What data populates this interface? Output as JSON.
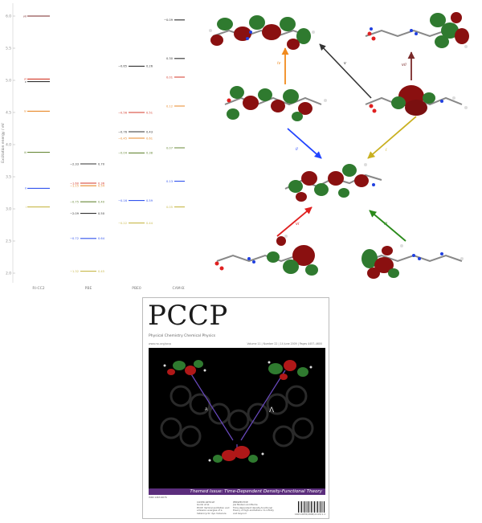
{
  "energy_diagram": {
    "y_axis_label": "Excitation energy / eV",
    "y_ticks": [
      "6.0",
      "5.5",
      "5.0",
      "4.5",
      "4.0",
      "3.5",
      "3.0",
      "2.5",
      "2.0"
    ],
    "y_tick_values": [
      6.0,
      5.5,
      5.0,
      4.5,
      4.0,
      3.5,
      3.0,
      2.5,
      2.0
    ],
    "y_range": [
      1.9,
      6.1
    ],
    "methods": [
      "RI-CC2",
      "PBE",
      "PBE0",
      "CAM-B3LYP"
    ],
    "colors": {
      "i": "#c9b94c",
      "ii": "#3355ee",
      "iii": "#6a8a3a",
      "iv": "#e88a2a",
      "v": "#333333",
      "vi": "#d43a2a",
      "vii": "#7a2a2a"
    },
    "ricc2_levels": [
      {
        "state": "vii",
        "label": "vii",
        "energy": 6.0
      },
      {
        "state": "vi",
        "label": "vi",
        "energy": 5.02
      },
      {
        "state": "v",
        "label": "v",
        "energy": 4.98
      },
      {
        "state": "iv",
        "label": "iv",
        "energy": 4.52
      },
      {
        "state": "iii",
        "label": "iii",
        "energy": 3.88
      },
      {
        "state": "ii",
        "label": "ii",
        "energy": 3.32
      },
      {
        "state": "i",
        "label": "i",
        "energy": 3.03
      }
    ],
    "pbe_levels": [
      {
        "state": "v",
        "energy": 3.7,
        "left": "−2.33",
        "right": "0.70"
      },
      {
        "state": "vi",
        "energy": 3.4,
        "left": "−1.60",
        "right": "0.36"
      },
      {
        "state": "iv",
        "energy": 3.36,
        "left": "−1.15",
        "right": "0.54"
      },
      {
        "state": "iii",
        "energy": 3.11,
        "left": "−0.75",
        "right": "0.40"
      },
      {
        "state": "v",
        "energy": 2.93,
        "left": "−2.09",
        "right": "0.50"
      },
      {
        "state": "ii",
        "energy": 2.54,
        "left": "−0.72",
        "right": "0.64"
      },
      {
        "state": "i",
        "energy": 2.03,
        "left": "−1.32",
        "right": "0.45"
      }
    ],
    "pbe0_levels": [
      {
        "state": "v",
        "energy": 5.22,
        "left": "−0.65",
        "right": "0.26"
      },
      {
        "state": "vi",
        "energy": 4.5,
        "left": "−0.56",
        "right": "0.51"
      },
      {
        "state": "v",
        "energy": 4.2,
        "left": "−0.76",
        "right": "0.43"
      },
      {
        "state": "iv",
        "energy": 4.1,
        "left": "−0.45",
        "right": "0.61"
      },
      {
        "state": "iii",
        "energy": 3.87,
        "left": "−0.04",
        "right": "0.38"
      },
      {
        "state": "ii",
        "energy": 3.13,
        "left": "−0.16",
        "right": "0.59"
      },
      {
        "state": "i",
        "energy": 2.78,
        "left": "−0.22",
        "right": "0.44"
      }
    ],
    "cam_levels": [
      {
        "state": "v",
        "energy": 5.94,
        "left": "−0.09",
        "right": "0.37"
      },
      {
        "state": "v",
        "energy": 5.34,
        "left": "0.30",
        "right": "0.42"
      },
      {
        "state": "vi",
        "energy": 5.05,
        "left": "0.01",
        "right": "0.61"
      },
      {
        "state": "iv",
        "energy": 4.6,
        "left": "0.12",
        "right": "0.60"
      },
      {
        "state": "iii",
        "energy": 3.95,
        "left": "0.07",
        "right": "0.37"
      },
      {
        "state": "ii",
        "energy": 3.43,
        "left": "0.13",
        "right": "0.58"
      },
      {
        "state": "i",
        "energy": 3.03,
        "left": "0.05",
        "right": "0.42"
      }
    ]
  },
  "transitions": {
    "labels": [
      "iv",
      "v",
      "vii",
      "ii",
      "i",
      "vi",
      "iii"
    ]
  },
  "cover": {
    "title": "PCCP",
    "subtitle": "Physical Chemistry Chemical Physics",
    "top_left": "www.rsc.org/pccp",
    "top_right": "Volume 11 | Number 22 | 14 June 2009 | Pages 4457–4600",
    "band_text": "Themed Issue: Time-Dependent Density-Functional Theory",
    "issn": "ISSN 1463-9076",
    "foot_col1": "COVER ARTICLE\nGuido et al.\nPCCP: Vertical excitation and\nemission energies of a\nheterocyclic dye molecule",
    "foot_col2": "PERSPECTIVE\nJoe Nielsen and Burke\nTime-dependent density-functional\ntheory of high excitations: to infinity\nand beyond",
    "foot_barcode_num": "1463-9076(2009)11:22;1-1",
    "img_label_a": "A",
    "img_label_b": "Λ"
  }
}
